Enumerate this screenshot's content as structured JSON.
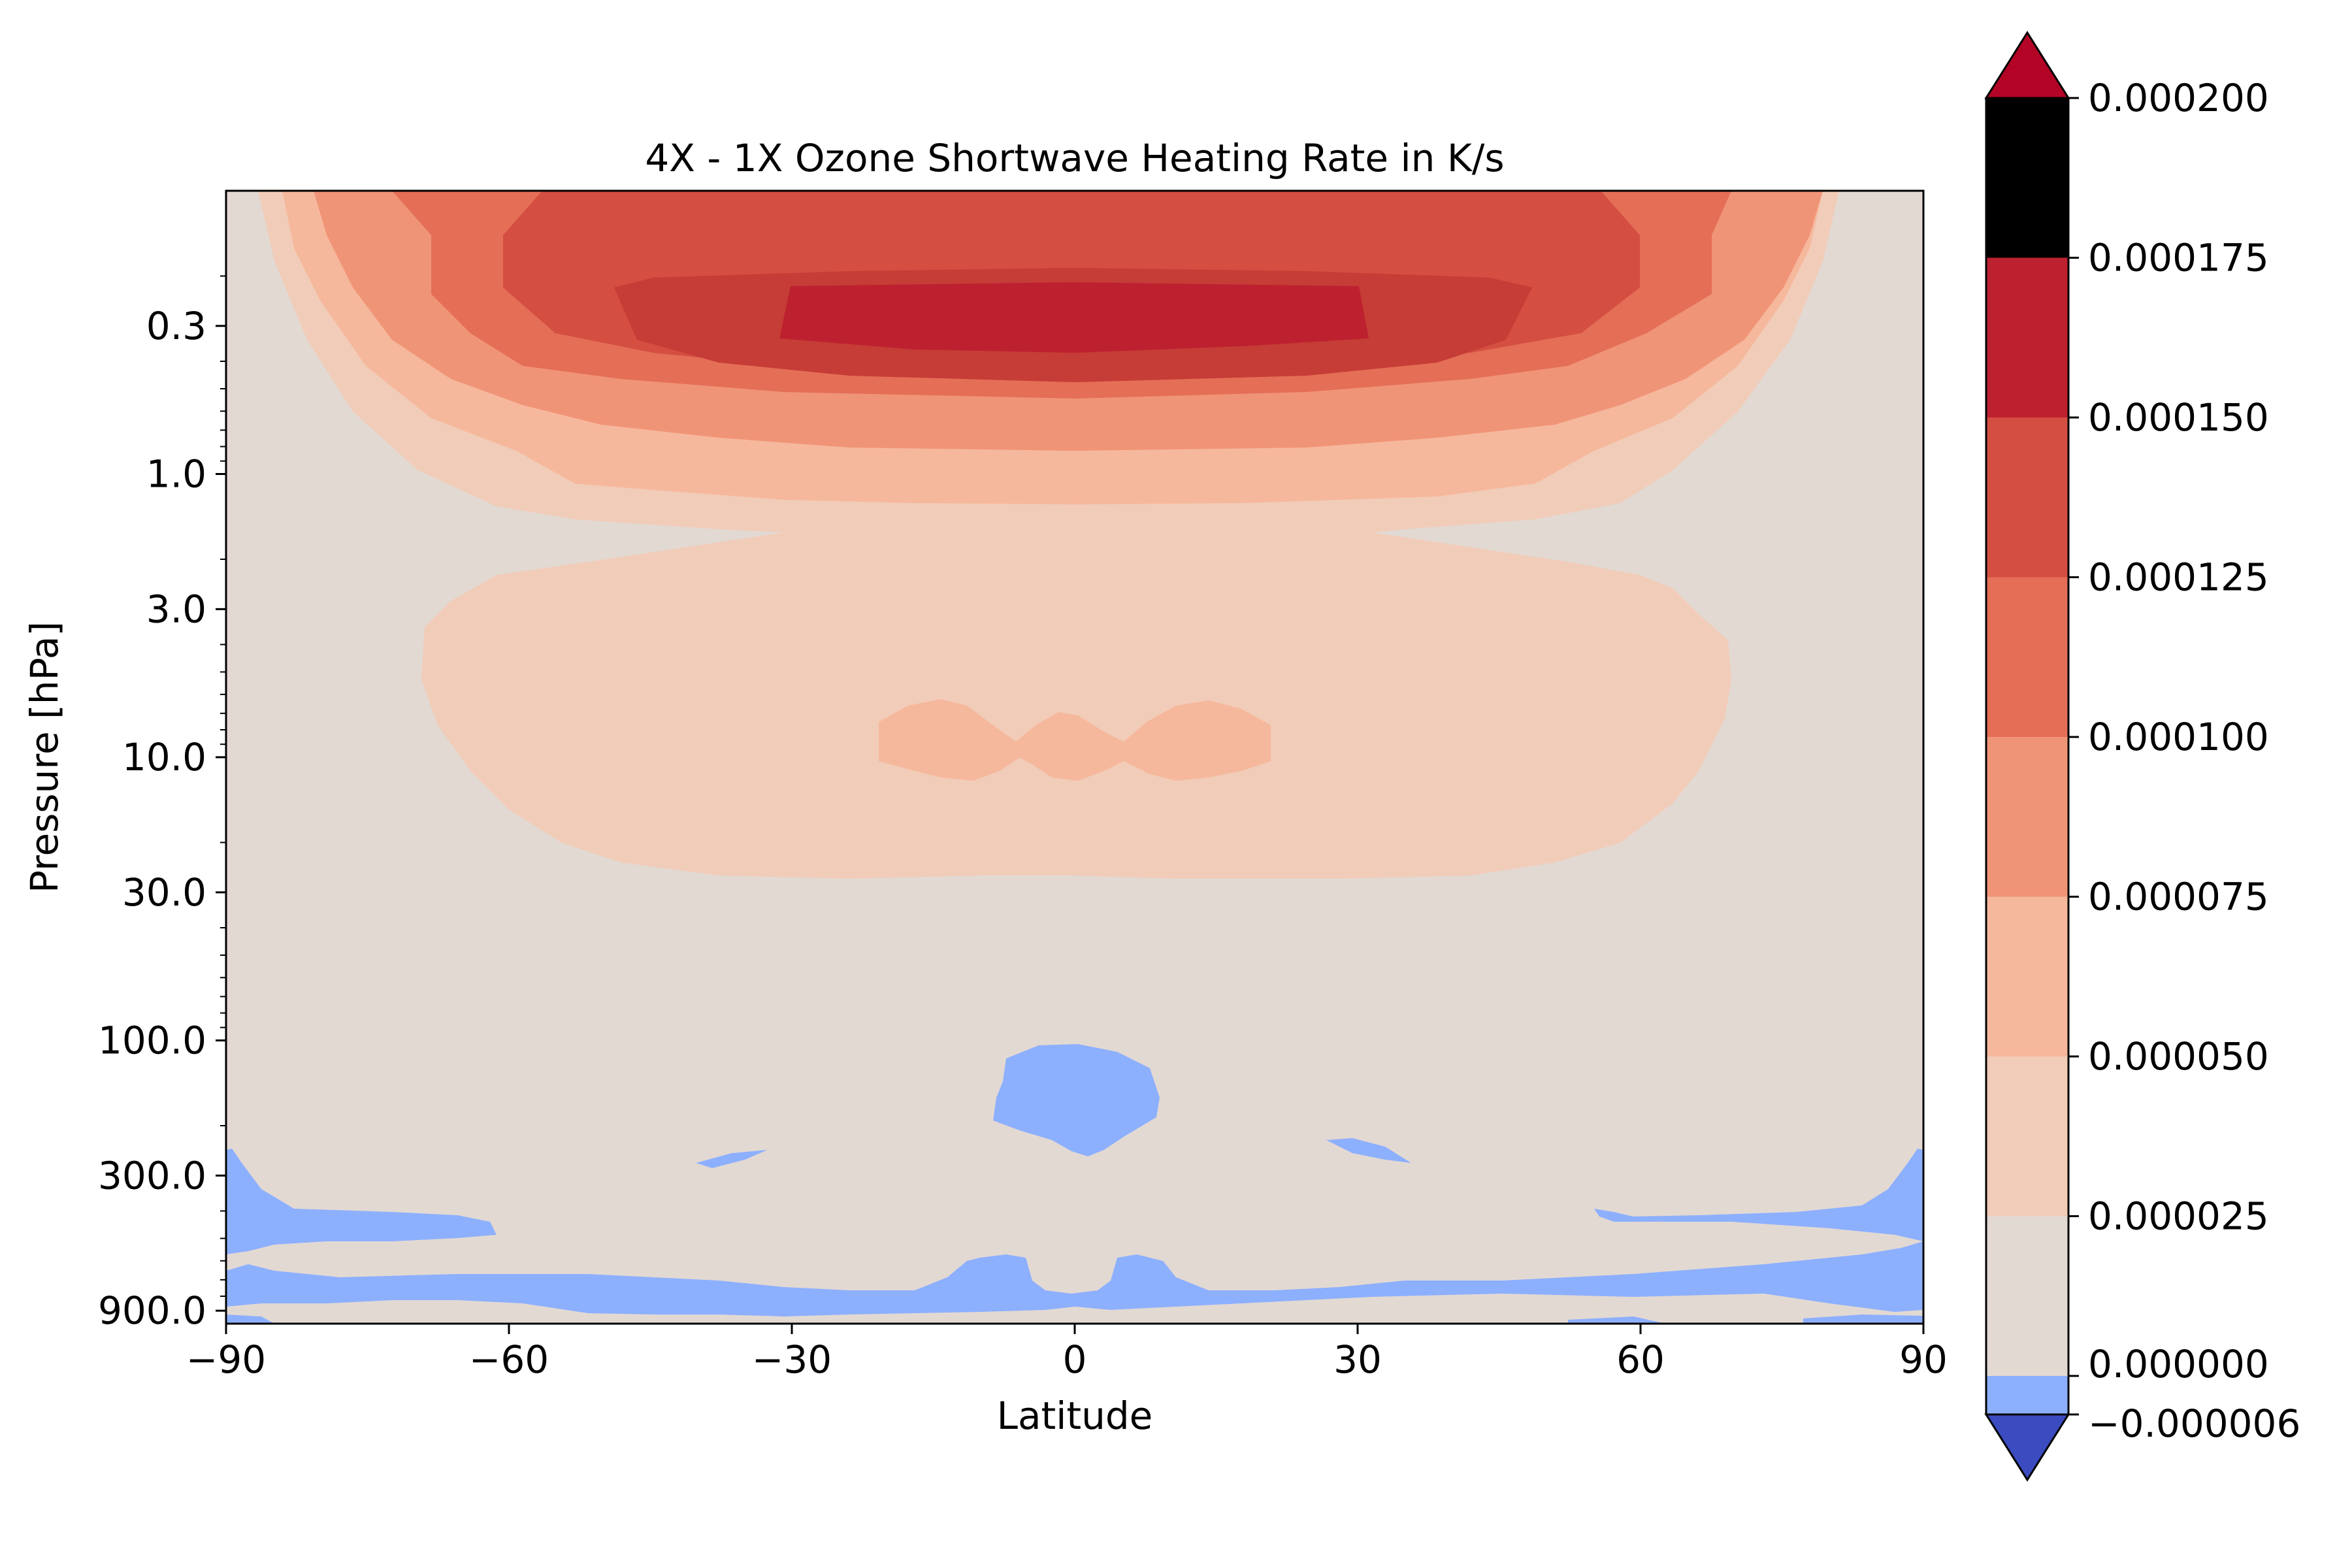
{
  "chart_data": {
    "type": "heatmap",
    "subtype": "filled-contour",
    "title": "4X - 1X Ozone Shortwave Heating Rate in K/s",
    "xlabel": "Latitude",
    "ylabel": "Pressure [hPa]",
    "xlim": [
      -90,
      90
    ],
    "xticks": [
      -90,
      -60,
      -30,
      0,
      30,
      60,
      90
    ],
    "xtick_labels": [
      "−90",
      "−60",
      "−30",
      "0",
      "30",
      "60",
      "90"
    ],
    "ylim": [
      1000,
      0.1
    ],
    "yscale": "log",
    "y_inverted": true,
    "yticks": [
      0.3,
      1.0,
      3.0,
      10.0,
      30.0,
      100.0,
      300.0,
      900.0
    ],
    "ytick_labels": [
      "0.3",
      "1.0",
      "3.0",
      "10.0",
      "30.0",
      "100.0",
      "300.0",
      "900.0"
    ],
    "grid": false,
    "colormap": "coolwarm",
    "colorbar": {
      "extend": "both",
      "levels": [
        -6e-06,
        0.0,
        2.5e-05,
        5e-05,
        7.5e-05,
        0.0001,
        0.000125,
        0.00015,
        0.000175,
        0.0002
      ],
      "tick_labels": [
        "−0.000006",
        "0.000000",
        "0.000025",
        "0.000050",
        "0.000075",
        "0.000100",
        "0.000125",
        "0.000150",
        "0.000175",
        "0.000200"
      ],
      "band_colors": [
        "#8db0fe",
        "#e3d9d3",
        "#f1ccb8",
        "#f6b89c",
        "#f09477",
        "#e46e56",
        "#d44e41",
        "#bd2130"
      ],
      "under_color": "#3b4cc0",
      "over_color": "#b40426"
    },
    "regions": [
      {
        "level_min": 2.5e-05,
        "level_max": 5e-05,
        "lat_range": [
          -84,
          84
        ],
        "pressure_range_hPa": [
          0.1,
          28
        ]
      },
      {
        "level_min": 5e-05,
        "level_max": 7.5e-05,
        "lat_range": [
          -23,
          21
        ],
        "pressure_range_hPa": [
          7.5,
          14
        ]
      },
      {
        "level_min": 5e-05,
        "level_max": 7.5e-05,
        "lat_range": [
          -80,
          80
        ],
        "pressure_range_hPa": [
          0.1,
          1.4
        ]
      },
      {
        "level_min": 7.5e-05,
        "level_max": 0.0001,
        "lat_range": [
          -76,
          76
        ],
        "pressure_range_hPa": [
          0.1,
          1.0
        ]
      },
      {
        "level_min": 0.0001,
        "level_max": 0.000125,
        "lat_range": [
          -68,
          68
        ],
        "pressure_range_hPa": [
          0.1,
          0.6
        ]
      },
      {
        "level_min": 0.000125,
        "level_max": 0.00015,
        "lat_range": [
          -60,
          60
        ],
        "pressure_range_hPa": [
          0.1,
          0.5
        ]
      },
      {
        "level_min": 0.00015,
        "level_max": 0.000175,
        "lat_range": [
          -49,
          49
        ],
        "pressure_range_hPa": [
          0.2,
          0.5
        ]
      },
      {
        "level_min": 0.000175,
        "level_max": 0.0002,
        "lat_range": [
          -31,
          31
        ],
        "pressure_range_hPa": [
          0.25,
          0.38
        ]
      },
      {
        "level_min": -6e-06,
        "level_max": 0.0,
        "lat_range": [
          -9,
          9
        ],
        "pressure_range_hPa": [
          110,
          270
        ]
      },
      {
        "level_min": -6e-06,
        "level_max": 0.0,
        "lat_range": [
          -90,
          90
        ],
        "pressure_range_hPa": [
          280,
          950
        ]
      }
    ]
  }
}
